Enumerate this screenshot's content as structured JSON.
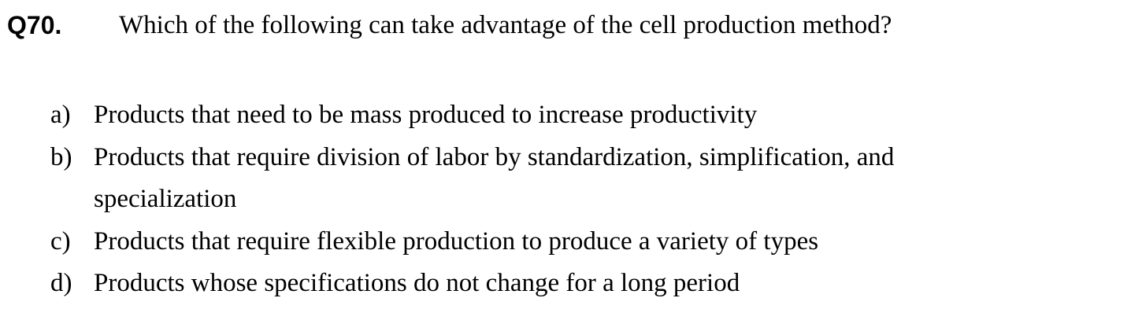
{
  "question": {
    "number": "Q70.",
    "text": "Which of the following can take advantage of the cell production method?"
  },
  "options": [
    {
      "letter": "a)",
      "text": "Products that need to be mass produced to increase productivity"
    },
    {
      "letter": "b)",
      "text": "Products that require division of labor by standardization, simplification, and specialization"
    },
    {
      "letter": "c)",
      "text": "Products that require flexible production to produce a variety of types"
    },
    {
      "letter": "d)",
      "text": "Products whose specifications do not change for a long period"
    }
  ]
}
